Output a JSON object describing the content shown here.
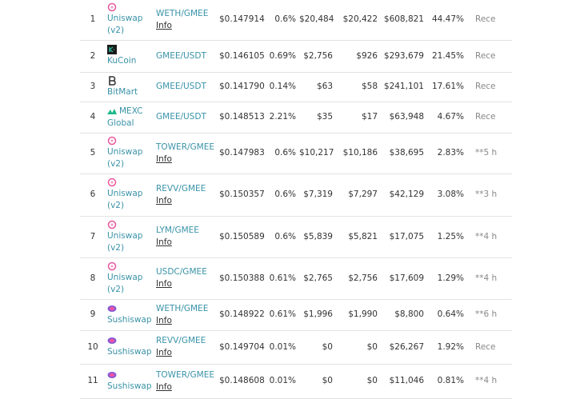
{
  "table": {
    "rows": [
      {
        "rank": "1",
        "exchange": "Uniswap (v2)",
        "pair": "WETH/GMEE",
        "info": "Info",
        "price": "$0.147914",
        "spread": "0.6%",
        "depth_up": "$20,484",
        "depth_down": "$20,422",
        "volume": "$608,821",
        "volume_pct": "44.47%",
        "updated": "Rece"
      },
      {
        "rank": "2",
        "exchange": "KuCoin",
        "pair": "GMEE/USDT",
        "price": "$0.146105",
        "spread": "0.69%",
        "depth_up": "$2,756",
        "depth_down": "$926",
        "volume": "$293,679",
        "volume_pct": "21.45%",
        "updated": "Rece"
      },
      {
        "rank": "3",
        "exchange": "BitMart",
        "pair": "GMEE/USDT",
        "price": "$0.141790",
        "spread": "0.14%",
        "depth_up": "$63",
        "depth_down": "$58",
        "volume": "$241,101",
        "volume_pct": "17.61%",
        "updated": "Rece"
      },
      {
        "rank": "4",
        "exchange": "MEXC Global",
        "pair": "GMEE/USDT",
        "price": "$0.148513",
        "spread": "2.21%",
        "depth_up": "$35",
        "depth_down": "$17",
        "volume": "$63,948",
        "volume_pct": "4.67%",
        "updated": "Rece"
      },
      {
        "rank": "5",
        "exchange": "Uniswap (v2)",
        "pair": "TOWER/GMEE",
        "info": "Info",
        "price": "$0.147983",
        "spread": "0.6%",
        "depth_up": "$10,217",
        "depth_down": "$10,186",
        "volume": "$38,695",
        "volume_pct": "2.83%",
        "updated": "**5 h"
      },
      {
        "rank": "6",
        "exchange": "Uniswap (v2)",
        "pair": "REVV/GMEE",
        "info": "Info",
        "price": "$0.150357",
        "spread": "0.6%",
        "depth_up": "$7,319",
        "depth_down": "$7,297",
        "volume": "$42,129",
        "volume_pct": "3.08%",
        "updated": "**3 h"
      },
      {
        "rank": "7",
        "exchange": "Uniswap (v2)",
        "pair": "LYM/GMEE",
        "info": "Info",
        "price": "$0.150589",
        "spread": "0.6%",
        "depth_up": "$5,839",
        "depth_down": "$5,821",
        "volume": "$17,075",
        "volume_pct": "1.25%",
        "updated": "**4 h"
      },
      {
        "rank": "8",
        "exchange": "Uniswap (v2)",
        "pair": "USDC/GMEE",
        "info": "Info",
        "price": "$0.150388",
        "spread": "0.61%",
        "depth_up": "$2,765",
        "depth_down": "$2,756",
        "volume": "$17,609",
        "volume_pct": "1.29%",
        "updated": "**4 h"
      },
      {
        "rank": "9",
        "exchange": "Sushiswap",
        "pair": "WETH/GMEE",
        "info": "Info",
        "price": "$0.148922",
        "spread": "0.61%",
        "depth_up": "$1,996",
        "depth_down": "$1,990",
        "volume": "$8,800",
        "volume_pct": "0.64%",
        "updated": "**6 h"
      },
      {
        "rank": "10",
        "exchange": "Sushiswap",
        "pair": "REVV/GMEE",
        "info": "Info",
        "price": "$0.149704",
        "spread": "0.01%",
        "depth_up": "$0",
        "depth_down": "$0",
        "volume": "$26,267",
        "volume_pct": "1.92%",
        "updated": "Rece"
      },
      {
        "rank": "11",
        "exchange": "Sushiswap",
        "pair": "TOWER/GMEE",
        "info": "Info",
        "price": "$0.148608",
        "spread": "0.01%",
        "depth_up": "$0",
        "depth_down": "$0",
        "volume": "$11,046",
        "volume_pct": "0.81%",
        "updated": "**4 h"
      }
    ]
  }
}
